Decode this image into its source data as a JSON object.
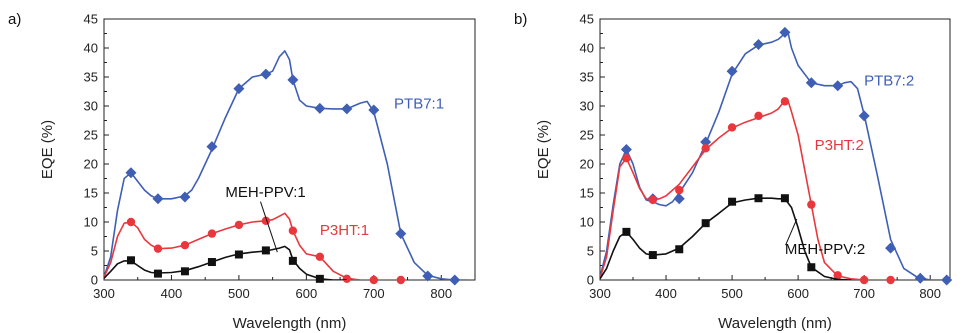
{
  "figure": {
    "panel_labels": [
      "a)",
      "b)"
    ]
  },
  "chart_data": [
    {
      "type": "line",
      "panel": "a)",
      "xlabel": "Wavelength (nm)",
      "ylabel": "EQE (%)",
      "xlim": [
        300,
        850
      ],
      "ylim": [
        0,
        45
      ],
      "xticks": [
        300,
        400,
        500,
        600,
        700,
        800
      ],
      "yticks": [
        0,
        5,
        10,
        15,
        20,
        25,
        30,
        35,
        40,
        45
      ],
      "grid": false,
      "series": [
        {
          "name": "PTB7:1",
          "color": "#3f5fb5",
          "marker": "diamond",
          "label_pos": [
            730,
            29.6
          ],
          "curve": [
            [
              300,
              0.5
            ],
            [
              310,
              4
            ],
            [
              320,
              12
            ],
            [
              330,
              17.5
            ],
            [
              340,
              18.5
            ],
            [
              350,
              17
            ],
            [
              360,
              15.5
            ],
            [
              370,
              14.5
            ],
            [
              380,
              14
            ],
            [
              400,
              14
            ],
            [
              420,
              14.5
            ],
            [
              430,
              15.5
            ],
            [
              440,
              17.5
            ],
            [
              460,
              22.5
            ],
            [
              480,
              28
            ],
            [
              500,
              33
            ],
            [
              520,
              35
            ],
            [
              540,
              35.5
            ],
            [
              550,
              36
            ],
            [
              560,
              38.5
            ],
            [
              568,
              39.5
            ],
            [
              575,
              38
            ],
            [
              580,
              34.5
            ],
            [
              590,
              31
            ],
            [
              600,
              30
            ],
            [
              620,
              29.6
            ],
            [
              640,
              29.5
            ],
            [
              660,
              29.5
            ],
            [
              680,
              30.5
            ],
            [
              690,
              30.8
            ],
            [
              700,
              29
            ],
            [
              720,
              20
            ],
            [
              740,
              8
            ],
            [
              760,
              3
            ],
            [
              780,
              0.8
            ],
            [
              800,
              0.2
            ],
            [
              820,
              0
            ],
            [
              840,
              0
            ]
          ],
          "markers": [
            [
              340,
              18.5
            ],
            [
              380,
              14
            ],
            [
              420,
              14.3
            ],
            [
              460,
              23
            ],
            [
              500,
              33
            ],
            [
              540,
              35.5
            ],
            [
              580,
              34.5
            ],
            [
              620,
              29.6
            ],
            [
              660,
              29.5
            ],
            [
              700,
              29.3
            ],
            [
              740,
              8
            ],
            [
              780,
              0.7
            ],
            [
              820,
              0
            ]
          ]
        },
        {
          "name": "P3HT:1",
          "color": "#e8383d",
          "marker": "circle",
          "label_pos": [
            620,
            7.8
          ],
          "curve": [
            [
              300,
              0.5
            ],
            [
              310,
              3
            ],
            [
              320,
              7.5
            ],
            [
              330,
              9.8
            ],
            [
              340,
              10
            ],
            [
              350,
              9
            ],
            [
              360,
              7
            ],
            [
              370,
              6
            ],
            [
              380,
              5.4
            ],
            [
              400,
              5.5
            ],
            [
              420,
              6
            ],
            [
              440,
              7
            ],
            [
              460,
              8
            ],
            [
              480,
              8.8
            ],
            [
              500,
              9.5
            ],
            [
              520,
              10
            ],
            [
              540,
              10.2
            ],
            [
              550,
              10.4
            ],
            [
              560,
              11
            ],
            [
              568,
              11.5
            ],
            [
              575,
              10.5
            ],
            [
              580,
              8.5
            ],
            [
              590,
              6
            ],
            [
              600,
              4.5
            ],
            [
              620,
              4
            ],
            [
              640,
              1.5
            ],
            [
              660,
              0.3
            ],
            [
              680,
              0
            ],
            [
              700,
              0
            ],
            [
              740,
              0
            ]
          ],
          "markers": [
            [
              340,
              10
            ],
            [
              380,
              5.4
            ],
            [
              420,
              6
            ],
            [
              460,
              8
            ],
            [
              500,
              9.5
            ],
            [
              540,
              10.2
            ],
            [
              580,
              8.5
            ],
            [
              620,
              4
            ],
            [
              660,
              0.2
            ],
            [
              700,
              0
            ],
            [
              740,
              0
            ]
          ]
        },
        {
          "name": "MEH-PPV:1",
          "color": "#111111",
          "marker": "square",
          "label_pos": [
            480,
            14.3
          ],
          "curve": [
            [
              300,
              0.3
            ],
            [
              310,
              1.5
            ],
            [
              320,
              2.8
            ],
            [
              330,
              3.3
            ],
            [
              340,
              3.3
            ],
            [
              350,
              2.5
            ],
            [
              360,
              1.7
            ],
            [
              370,
              1.3
            ],
            [
              380,
              1.2
            ],
            [
              400,
              1.3
            ],
            [
              420,
              1.6
            ],
            [
              440,
              2.3
            ],
            [
              460,
              3.1
            ],
            [
              480,
              3.9
            ],
            [
              500,
              4.5
            ],
            [
              520,
              4.8
            ],
            [
              540,
              5
            ],
            [
              560,
              5.5
            ],
            [
              568,
              5.8
            ],
            [
              575,
              5.2
            ],
            [
              580,
              3.5
            ],
            [
              590,
              2
            ],
            [
              600,
              1
            ],
            [
              620,
              0.2
            ],
            [
              640,
              0
            ],
            [
              660,
              0
            ]
          ],
          "markers": [
            [
              340,
              3.4
            ],
            [
              380,
              1.1
            ],
            [
              420,
              1.5
            ],
            [
              460,
              3.1
            ],
            [
              500,
              4.4
            ],
            [
              540,
              5.1
            ],
            [
              580,
              3.3
            ],
            [
              620,
              0.2
            ]
          ],
          "pointer": [
            [
              532,
              13.5
            ],
            [
              557,
              4.8
            ]
          ]
        }
      ]
    },
    {
      "type": "line",
      "panel": "b)",
      "xlabel": "Wavelength (nm)",
      "ylabel": "EQE (%)",
      "xlim": [
        300,
        830
      ],
      "ylim": [
        0,
        45
      ],
      "xticks": [
        300,
        400,
        500,
        600,
        700,
        800
      ],
      "yticks": [
        0,
        5,
        10,
        15,
        20,
        25,
        30,
        35,
        40,
        45
      ],
      "grid": false,
      "series": [
        {
          "name": "PTB7:2",
          "color": "#3f5fb5",
          "marker": "diamond",
          "label_pos": [
            700,
            33.5
          ],
          "curve": [
            [
              300,
              0.5
            ],
            [
              310,
              5
            ],
            [
              320,
              13
            ],
            [
              330,
              20
            ],
            [
              340,
              22.5
            ],
            [
              350,
              20
            ],
            [
              360,
              16
            ],
            [
              370,
              13.8
            ],
            [
              380,
              13.5
            ],
            [
              390,
              13
            ],
            [
              400,
              12.8
            ],
            [
              410,
              13.5
            ],
            [
              420,
              15
            ],
            [
              440,
              18.5
            ],
            [
              460,
              23.5
            ],
            [
              480,
              29
            ],
            [
              500,
              35.5
            ],
            [
              520,
              39
            ],
            [
              540,
              40.5
            ],
            [
              560,
              41
            ],
            [
              570,
              41.5
            ],
            [
              580,
              42.5
            ],
            [
              585,
              42.5
            ],
            [
              590,
              40
            ],
            [
              600,
              37
            ],
            [
              620,
              34
            ],
            [
              640,
              33.5
            ],
            [
              660,
              33.5
            ],
            [
              670,
              34
            ],
            [
              680,
              34.2
            ],
            [
              690,
              33
            ],
            [
              700,
              28.5
            ],
            [
              720,
              18
            ],
            [
              740,
              7
            ],
            [
              760,
              2
            ],
            [
              780,
              0.5
            ],
            [
              800,
              0
            ],
            [
              830,
              0
            ]
          ],
          "markers": [
            [
              340,
              22.5
            ],
            [
              380,
              14
            ],
            [
              420,
              14
            ],
            [
              460,
              23.8
            ],
            [
              500,
              36
            ],
            [
              540,
              40.6
            ],
            [
              580,
              42.7
            ],
            [
              620,
              34
            ],
            [
              660,
              33.5
            ],
            [
              700,
              28.3
            ],
            [
              740,
              5.5
            ],
            [
              785,
              0.3
            ],
            [
              825,
              0
            ]
          ]
        },
        {
          "name": "P3HT:2",
          "color": "#e8383d",
          "marker": "circle",
          "label_pos": [
            625,
            22.4
          ],
          "curve": [
            [
              300,
              0.3
            ],
            [
              310,
              4
            ],
            [
              320,
              12
            ],
            [
              330,
              19.5
            ],
            [
              340,
              21
            ],
            [
              350,
              18.5
            ],
            [
              360,
              15.8
            ],
            [
              370,
              14
            ],
            [
              380,
              13.8
            ],
            [
              390,
              14
            ],
            [
              400,
              14.5
            ],
            [
              420,
              16.5
            ],
            [
              440,
              19.5
            ],
            [
              460,
              22.5
            ],
            [
              480,
              24.5
            ],
            [
              500,
              26.2
            ],
            [
              520,
              27.2
            ],
            [
              540,
              28
            ],
            [
              560,
              28.8
            ],
            [
              570,
              29.5
            ],
            [
              580,
              31
            ],
            [
              585,
              30.8
            ],
            [
              590,
              29
            ],
            [
              600,
              25
            ],
            [
              610,
              19
            ],
            [
              620,
              13
            ],
            [
              630,
              7
            ],
            [
              640,
              3
            ],
            [
              660,
              0.7
            ],
            [
              680,
              0.2
            ],
            [
              700,
              0
            ],
            [
              740,
              0
            ]
          ],
          "markers": [
            [
              340,
              21
            ],
            [
              380,
              13.8
            ],
            [
              420,
              15.5
            ],
            [
              460,
              22.7
            ],
            [
              500,
              26.3
            ],
            [
              540,
              28.3
            ],
            [
              580,
              30.8
            ],
            [
              620,
              13
            ],
            [
              660,
              0.8
            ],
            [
              700,
              0
            ],
            [
              740,
              0
            ]
          ]
        },
        {
          "name": "MEH-PPV:2",
          "color": "#111111",
          "marker": "square",
          "label_pos": [
            580,
            4.5
          ],
          "curve": [
            [
              300,
              0.2
            ],
            [
              310,
              2
            ],
            [
              320,
              5
            ],
            [
              330,
              7.5
            ],
            [
              340,
              8.3
            ],
            [
              350,
              7
            ],
            [
              360,
              5.5
            ],
            [
              370,
              4.5
            ],
            [
              380,
              4.3
            ],
            [
              400,
              4.5
            ],
            [
              420,
              5.5
            ],
            [
              440,
              7.5
            ],
            [
              460,
              9.8
            ],
            [
              480,
              11.5
            ],
            [
              500,
              13.3
            ],
            [
              520,
              13.8
            ],
            [
              540,
              14.1
            ],
            [
              560,
              14.1
            ],
            [
              570,
              14
            ],
            [
              580,
              14
            ],
            [
              590,
              12.5
            ],
            [
              600,
              9
            ],
            [
              610,
              5
            ],
            [
              620,
              2.2
            ],
            [
              640,
              0.6
            ],
            [
              660,
              0.1
            ],
            [
              680,
              0
            ]
          ],
          "markers": [
            [
              340,
              8.3
            ],
            [
              380,
              4.3
            ],
            [
              420,
              5.3
            ],
            [
              460,
              9.8
            ],
            [
              500,
              13.5
            ],
            [
              540,
              14.1
            ],
            [
              580,
              14.1
            ],
            [
              620,
              2.2
            ]
          ],
          "pointer": [
            [
              581,
              6.0
            ],
            [
              598,
              10.5
            ]
          ]
        }
      ]
    }
  ]
}
